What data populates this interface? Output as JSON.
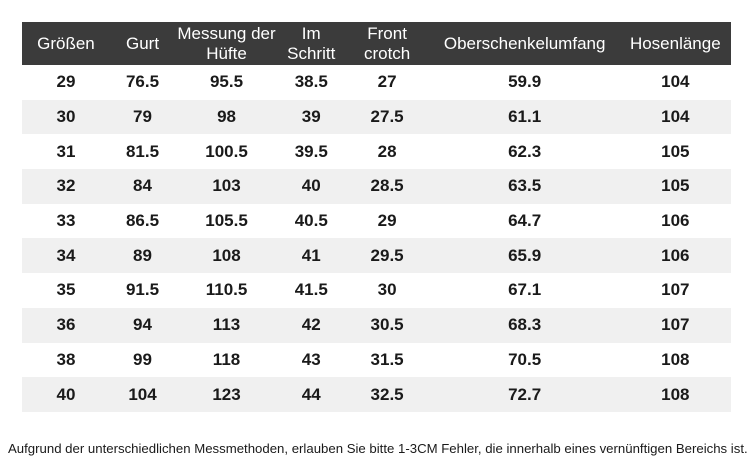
{
  "chart_data": {
    "type": "table",
    "columns": [
      "Größen",
      "Gurt",
      "Messung der Hüfte",
      "Im Schritt",
      "Front crotch",
      "Oberschenkelumfang",
      "Hosenlänge"
    ],
    "rows": [
      [
        "29",
        "76.5",
        "95.5",
        "38.5",
        "27",
        "59.9",
        "104"
      ],
      [
        "30",
        "79",
        "98",
        "39",
        "27.5",
        "61.1",
        "104"
      ],
      [
        "31",
        "81.5",
        "100.5",
        "39.5",
        "28",
        "62.3",
        "105"
      ],
      [
        "32",
        "84",
        "103",
        "40",
        "28.5",
        "63.5",
        "105"
      ],
      [
        "33",
        "86.5",
        "105.5",
        "40.5",
        "29",
        "64.7",
        "106"
      ],
      [
        "34",
        "89",
        "108",
        "41",
        "29.5",
        "65.9",
        "106"
      ],
      [
        "35",
        "91.5",
        "110.5",
        "41.5",
        "30",
        "67.1",
        "107"
      ],
      [
        "36",
        "94",
        "113",
        "42",
        "30.5",
        "68.3",
        "107"
      ],
      [
        "38",
        "99",
        "118",
        "43",
        "31.5",
        "70.5",
        "108"
      ],
      [
        "40",
        "104",
        "123",
        "44",
        "32.5",
        "72.7",
        "108"
      ]
    ],
    "column_widths_percent": [
      12.4,
      9.2,
      14.5,
      9.4,
      12.0,
      26.8,
      15.7
    ],
    "layout": {
      "zebra": true,
      "zebra_start_row": 2,
      "header_position": "top",
      "grid": false
    }
  },
  "colors": {
    "header_bg": "#3b3b3b",
    "header_text": "#ffffff",
    "row_bg": "#ffffff",
    "row_alt_bg": "#f0f0f0",
    "body_text": "#1a1a1a"
  },
  "footer": {
    "note": "Aufgrund der unterschiedlichen Messmethoden, erlauben Sie bitte 1-3CM Fehler, die innerhalb eines vernünftigen Bereichs ist."
  }
}
